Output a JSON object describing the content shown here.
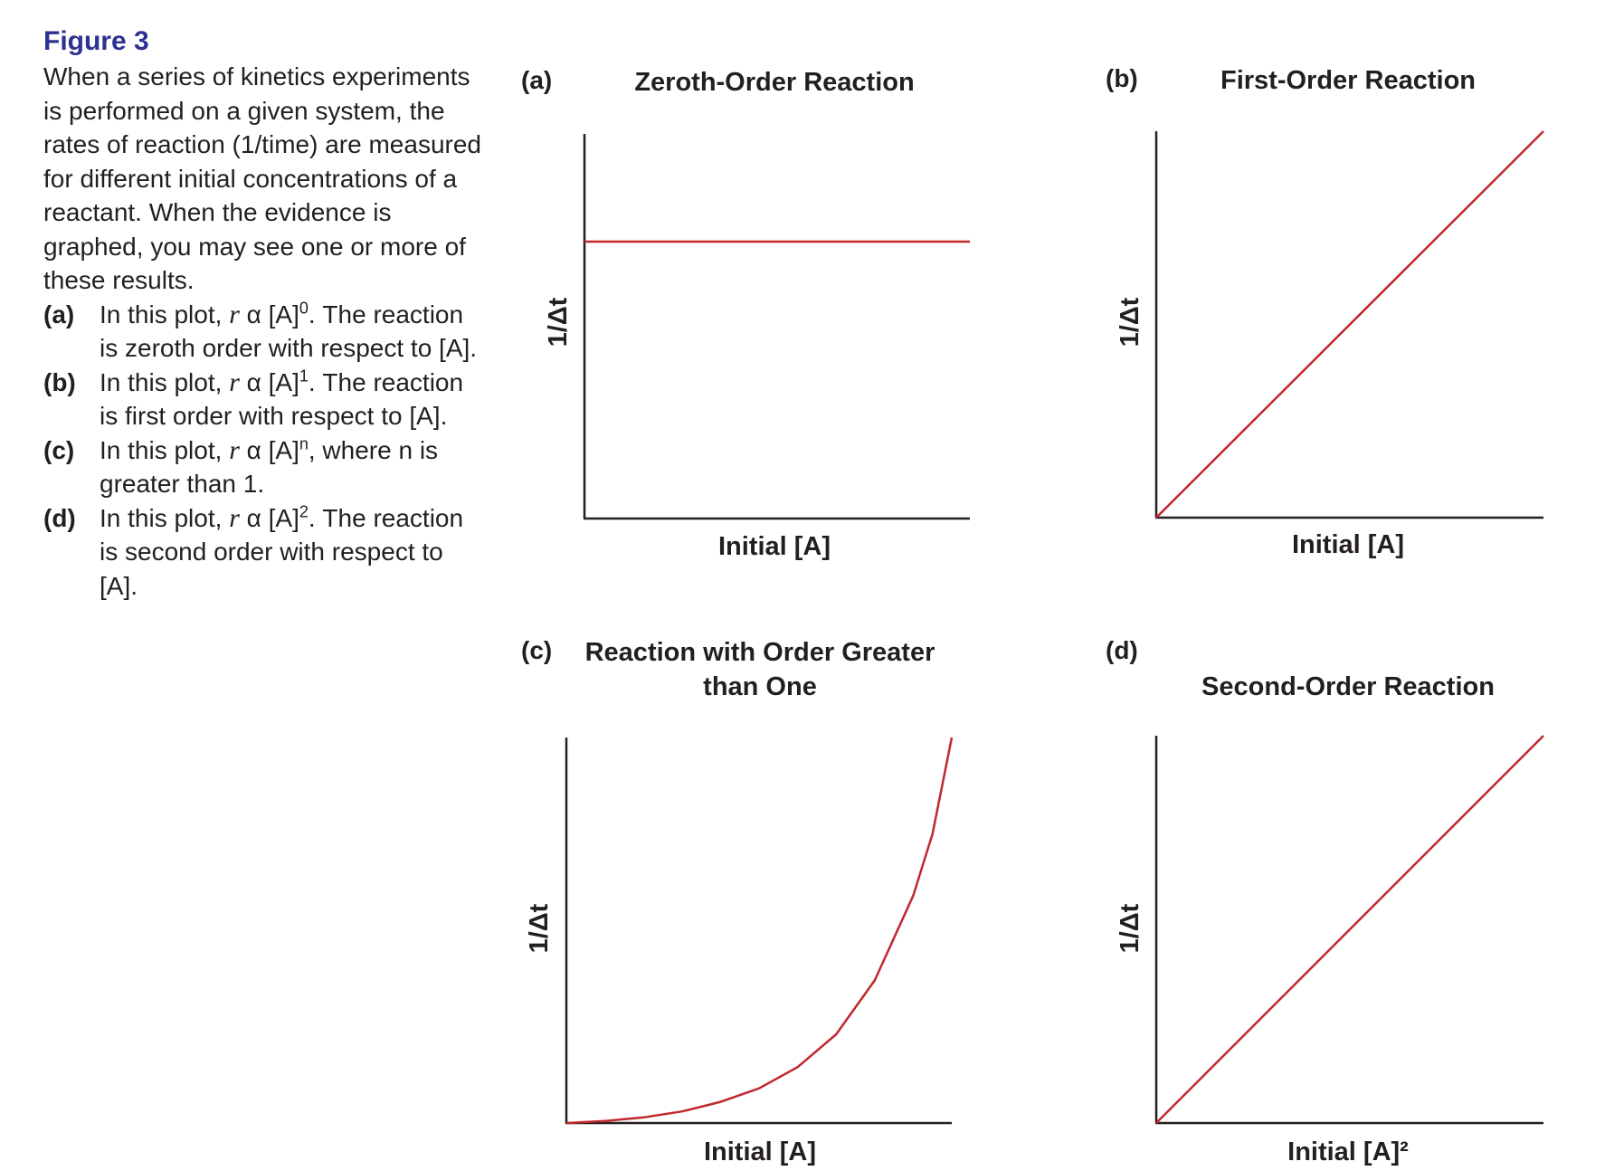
{
  "caption": {
    "figure_label": "Figure 3",
    "intro": "When a series of kinetics experiments is performed on a given system, the rates of reaction (1/time) are measured for different initial concentrations of a reactant. When the evidence is graphed, you may see one or more of these results.",
    "items": [
      {
        "label": "(a)",
        "pre": "In this plot, ",
        "r": "r",
        "mid": " α [A]",
        "sup": "0",
        "post": ". The reaction is zeroth order with respect to [A]."
      },
      {
        "label": "(b)",
        "pre": "In this plot, ",
        "r": "r",
        "mid": " α [A]",
        "sup": "1",
        "post": ". The reaction is first order with respect to [A]."
      },
      {
        "label": "(c)",
        "pre": "In this plot, ",
        "r": "r",
        "mid": " α [A]",
        "sup": "n",
        "post": ", where n is greater than 1."
      },
      {
        "label": "(d)",
        "pre": "In this plot, ",
        "r": "r",
        "mid": " α [A]",
        "sup": "2",
        "post": ". The reaction is second order with respect to [A]."
      }
    ]
  },
  "colors": {
    "curve": "#c1272d",
    "axis": "#231f20",
    "figure_label": "#2e3192"
  },
  "chart_data": [
    {
      "panel": "(a)",
      "type": "line",
      "title": "Zeroth-Order Reaction",
      "xlabel": "Initial [A]",
      "ylabel": "1/Δt",
      "xlim": [
        0,
        1
      ],
      "ylim": [
        0,
        1
      ],
      "grid": false,
      "series": [
        {
          "x": [
            0,
            1
          ],
          "y": [
            0.72,
            0.72
          ]
        }
      ]
    },
    {
      "panel": "(b)",
      "type": "line",
      "title": "First-Order Reaction",
      "xlabel": "Initial [A]",
      "ylabel": "1/Δt",
      "xlim": [
        0,
        1
      ],
      "ylim": [
        0,
        1
      ],
      "grid": false,
      "series": [
        {
          "x": [
            0,
            1
          ],
          "y": [
            0,
            1
          ]
        }
      ]
    },
    {
      "panel": "(c)",
      "type": "line",
      "title": "Reaction with Order Greater than One",
      "xlabel": "Initial [A]",
      "ylabel": "1/Δt",
      "xlim": [
        0,
        1
      ],
      "ylim": [
        0,
        1
      ],
      "grid": false,
      "series": [
        {
          "x": [
            0,
            0.1,
            0.2,
            0.3,
            0.4,
            0.5,
            0.6,
            0.7,
            0.8,
            0.9,
            0.95,
            1.0
          ],
          "y": [
            0,
            0.0052,
            0.0145,
            0.03,
            0.055,
            0.09,
            0.145,
            0.23,
            0.37,
            0.59,
            0.75,
            1.0
          ]
        }
      ]
    },
    {
      "panel": "(d)",
      "type": "line",
      "title": "Second-Order Reaction",
      "xlabel": "Initial [A]²",
      "ylabel": "1/Δt",
      "xlim": [
        0,
        1
      ],
      "ylim": [
        0,
        1
      ],
      "grid": false,
      "series": [
        {
          "x": [
            0,
            1
          ],
          "y": [
            0,
            1
          ]
        }
      ]
    }
  ]
}
